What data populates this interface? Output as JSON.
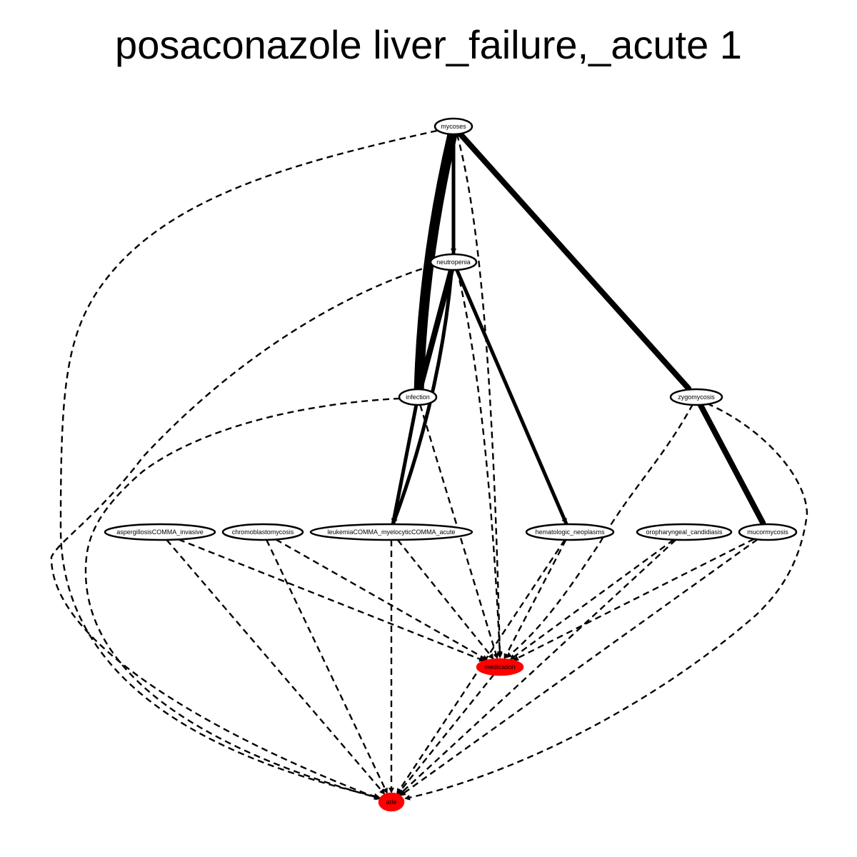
{
  "title": "posaconazole liver_failure,_acute 1",
  "colors": {
    "highlight": "#ff0000",
    "outline": "#000000",
    "background": "#ffffff"
  },
  "nodes": [
    {
      "id": "mycoses",
      "label": "mycoses",
      "highlight": false
    },
    {
      "id": "neutropenia",
      "label": "neutropenia",
      "highlight": false
    },
    {
      "id": "infection",
      "label": "infection",
      "highlight": false
    },
    {
      "id": "zygomycosis",
      "label": "zygomycosis",
      "highlight": false
    },
    {
      "id": "aspergillosis",
      "label": "aspergillosisCOMMA_invasive",
      "highlight": false
    },
    {
      "id": "chromoblastomycosis",
      "label": "chromoblastomycosis",
      "highlight": false
    },
    {
      "id": "leukemia",
      "label": "leukemiaCOMMA_myelocyticCOMMA_acute",
      "highlight": false
    },
    {
      "id": "hematologic",
      "label": "hematologic_neoplasms",
      "highlight": false
    },
    {
      "id": "oropharyngeal",
      "label": "oropharyngeal_candidiasis",
      "highlight": false
    },
    {
      "id": "mucormycosis",
      "label": "mucormycosis",
      "highlight": false
    },
    {
      "id": "medication",
      "label": "medication",
      "highlight": true
    },
    {
      "id": "ade",
      "label": "ade",
      "highlight": true
    }
  ],
  "edges": [
    {
      "from": "mycoses",
      "to": "infection",
      "style": "solid",
      "weight": "heaviest"
    },
    {
      "from": "mycoses",
      "to": "neutropenia",
      "style": "solid",
      "weight": "medium"
    },
    {
      "from": "mycoses",
      "to": "zygomycosis",
      "style": "solid",
      "weight": "heavy"
    },
    {
      "from": "mycoses",
      "to": "medication",
      "style": "dashed"
    },
    {
      "from": "mycoses",
      "to": "ade",
      "style": "dashed"
    },
    {
      "from": "neutropenia",
      "to": "infection",
      "style": "solid",
      "weight": "heavy"
    },
    {
      "from": "neutropenia",
      "to": "leukemia",
      "style": "solid",
      "weight": "medium"
    },
    {
      "from": "neutropenia",
      "to": "hematologic",
      "style": "solid",
      "weight": "medium"
    },
    {
      "from": "neutropenia",
      "to": "medication",
      "style": "dashed"
    },
    {
      "from": "neutropenia",
      "to": "ade",
      "style": "dashed"
    },
    {
      "from": "infection",
      "to": "leukemia",
      "style": "solid",
      "weight": "medium"
    },
    {
      "from": "infection",
      "to": "medication",
      "style": "dashed"
    },
    {
      "from": "infection",
      "to": "ade",
      "style": "dashed"
    },
    {
      "from": "zygomycosis",
      "to": "mucormycosis",
      "style": "solid",
      "weight": "heavy"
    },
    {
      "from": "zygomycosis",
      "to": "medication",
      "style": "dashed"
    },
    {
      "from": "zygomycosis",
      "to": "ade",
      "style": "dashed"
    },
    {
      "from": "aspergillosis",
      "to": "medication",
      "style": "dashed"
    },
    {
      "from": "aspergillosis",
      "to": "ade",
      "style": "dashed"
    },
    {
      "from": "chromoblastomycosis",
      "to": "medication",
      "style": "dashed"
    },
    {
      "from": "chromoblastomycosis",
      "to": "ade",
      "style": "dashed"
    },
    {
      "from": "leukemia",
      "to": "medication",
      "style": "dashed"
    },
    {
      "from": "leukemia",
      "to": "ade",
      "style": "dashed"
    },
    {
      "from": "hematologic",
      "to": "medication",
      "style": "dashed"
    },
    {
      "from": "hematologic",
      "to": "ade",
      "style": "dashed"
    },
    {
      "from": "oropharyngeal",
      "to": "medication",
      "style": "dashed"
    },
    {
      "from": "oropharyngeal",
      "to": "ade",
      "style": "dashed"
    },
    {
      "from": "mucormycosis",
      "to": "medication",
      "style": "dashed"
    },
    {
      "from": "mucormycosis",
      "to": "ade",
      "style": "dashed"
    },
    {
      "from": "medication",
      "to": "ade",
      "style": "dashed"
    }
  ]
}
